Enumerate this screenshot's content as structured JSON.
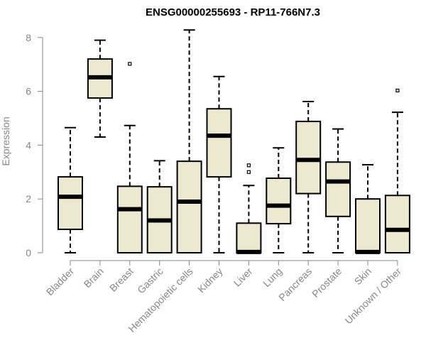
{
  "chart_data": {
    "type": "box",
    "title": "ENSG00000255693 - RP11-766N7.3",
    "xlabel": "",
    "ylabel": "Expression",
    "ylim": [
      0,
      8.3
    ],
    "yticks": [
      0,
      2,
      4,
      6,
      8
    ],
    "grid": false,
    "box_fill": "#ede8d0",
    "box_stroke": "#000000",
    "categories": [
      "Bladder",
      "Brain",
      "Breast",
      "Gastric",
      "Hematopoietic cells",
      "Kidney",
      "Liver",
      "Lung",
      "Pancreas",
      "Prostate",
      "Skin",
      "Unknown / Other"
    ],
    "boxes": [
      {
        "min": 0.0,
        "q1": 0.87,
        "median": 2.08,
        "q3": 2.82,
        "max": 4.65,
        "outliers": []
      },
      {
        "min": 4.3,
        "q1": 5.75,
        "median": 6.52,
        "q3": 7.2,
        "max": 7.9,
        "outliers": []
      },
      {
        "min": 0.0,
        "q1": 0.0,
        "median": 1.62,
        "q3": 2.47,
        "max": 4.73,
        "outliers": [
          7.02
        ]
      },
      {
        "min": 0.0,
        "q1": 0.0,
        "median": 1.2,
        "q3": 2.45,
        "max": 3.42,
        "outliers": []
      },
      {
        "min": 0.0,
        "q1": 0.0,
        "median": 1.9,
        "q3": 3.4,
        "max": 8.28,
        "outliers": []
      },
      {
        "min": 0.0,
        "q1": 2.82,
        "median": 4.35,
        "q3": 5.35,
        "max": 6.55,
        "outliers": []
      },
      {
        "min": 0.0,
        "q1": 0.0,
        "median": 0.03,
        "q3": 1.1,
        "max": 2.5,
        "outliers": [
          3.0,
          3.25
        ]
      },
      {
        "min": 0.0,
        "q1": 1.08,
        "median": 1.75,
        "q3": 2.77,
        "max": 3.9,
        "outliers": []
      },
      {
        "min": 0.0,
        "q1": 2.2,
        "median": 3.45,
        "q3": 4.88,
        "max": 5.62,
        "outliers": []
      },
      {
        "min": 0.0,
        "q1": 1.35,
        "median": 2.65,
        "q3": 3.37,
        "max": 4.6,
        "outliers": []
      },
      {
        "min": 0.0,
        "q1": 0.0,
        "median": 0.03,
        "q3": 2.0,
        "max": 3.27,
        "outliers": []
      },
      {
        "min": 0.0,
        "q1": 0.0,
        "median": 0.85,
        "q3": 2.13,
        "max": 5.22,
        "outliers": [
          6.03
        ]
      }
    ]
  }
}
